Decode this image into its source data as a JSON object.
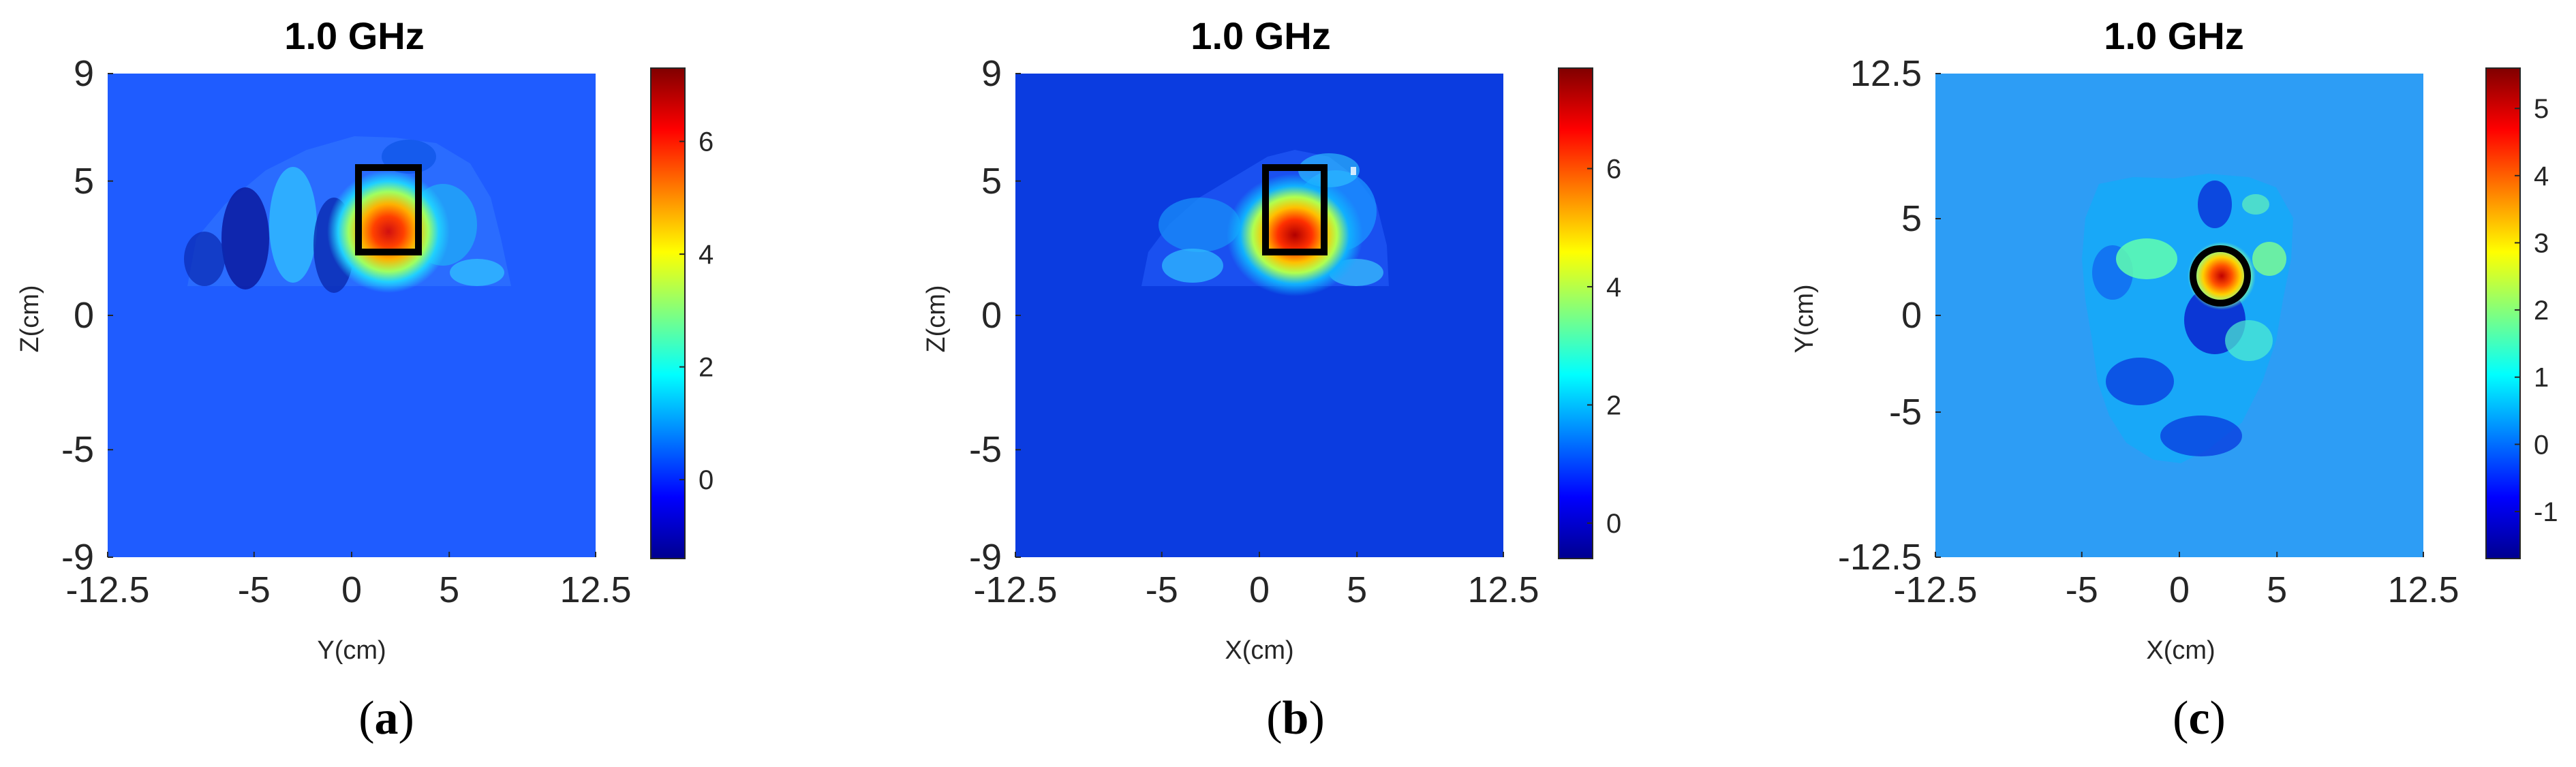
{
  "chart_data": [
    {
      "type": "heatmap",
      "panel_label": "a",
      "title": "1.0 GHz",
      "xlabel": "Y(cm)",
      "ylabel": "Z(cm)",
      "x_ticks": [
        "-12.5",
        "-5",
        "0",
        "5",
        "12.5"
      ],
      "y_ticks": [
        "9",
        "5",
        "0",
        "-5",
        "-9"
      ],
      "xlim": [
        -12.5,
        12.5
      ],
      "ylim": [
        -9,
        9
      ],
      "background_color": "#1f5cff",
      "colorbar": {
        "range": [
          -1.4,
          7.3
        ],
        "ticks": [
          "6",
          "4",
          "2",
          "0"
        ]
      },
      "marker": {
        "shape": "rectangle",
        "x_range": [
          0.3,
          3.5
        ],
        "y_range": [
          2.6,
          5.7
        ]
      },
      "hotspot": {
        "x": 2.2,
        "y": 3.5,
        "value": 7.0
      }
    },
    {
      "type": "heatmap",
      "panel_label": "b",
      "title": "1.0 GHz",
      "xlabel": "X(cm)",
      "ylabel": "Z(cm)",
      "x_ticks": [
        "-12.5",
        "-5",
        "0",
        "5",
        "12.5"
      ],
      "y_ticks": [
        "9",
        "5",
        "0",
        "-5",
        "-9"
      ],
      "xlim": [
        -12.5,
        12.5
      ],
      "ylim": [
        -9,
        9
      ],
      "background_color": "#0b3ce0",
      "colorbar": {
        "range": [
          -0.6,
          7.7
        ],
        "ticks": [
          "6",
          "4",
          "2",
          "0"
        ]
      },
      "marker": {
        "shape": "rectangle",
        "x_range": [
          0.4,
          3.5
        ],
        "y_range": [
          2.6,
          5.7
        ]
      },
      "hotspot": {
        "x": 2.3,
        "y": 3.4,
        "value": 7.3
      }
    },
    {
      "type": "heatmap",
      "panel_label": "c",
      "title": "1.0 GHz",
      "xlabel": "X(cm)",
      "ylabel": "Y(cm)",
      "x_ticks": [
        "-12.5",
        "-5",
        "0",
        "5",
        "12.5"
      ],
      "y_ticks": [
        "12.5",
        "5",
        "0",
        "-5",
        "-12.5"
      ],
      "xlim": [
        -12.5,
        12.5
      ],
      "ylim": [
        -12.5,
        12.5
      ],
      "background_color": "#2d9df5",
      "colorbar": {
        "range": [
          -1.7,
          5.6
        ],
        "ticks": [
          "5",
          "4",
          "3",
          "2",
          "1",
          "0",
          "-1"
        ]
      },
      "marker": {
        "shape": "circle",
        "center": [
          2.0,
          2.0
        ],
        "radius": 1.9
      },
      "hotspot": {
        "x": 2.0,
        "y": 2.0,
        "value": 5.3
      }
    }
  ]
}
